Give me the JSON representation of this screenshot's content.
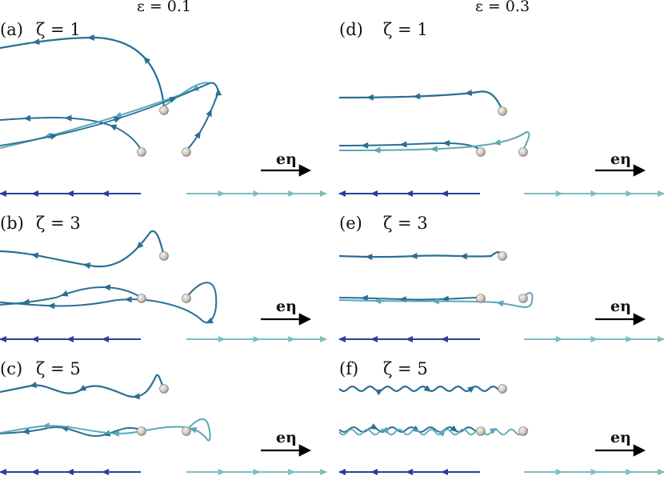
{
  "figure": {
    "column_headers": [
      "ε = 0.1",
      "ε = 0.3"
    ],
    "panels": [
      {
        "letter": "(a)",
        "zeta": "ζ = 1"
      },
      {
        "letter": "(b)",
        "zeta": "ζ = 3"
      },
      {
        "letter": "(c)",
        "zeta": "ζ = 5"
      },
      {
        "letter": "(d)",
        "zeta": "ζ = 1"
      },
      {
        "letter": "(e)",
        "zeta": "ζ = 3"
      },
      {
        "letter": "(f)",
        "zeta": "ζ = 5"
      }
    ],
    "direction_vector_label": "eη",
    "colors": {
      "trajectory": "#2a6f95",
      "trajectory_light": "#5aa8b8",
      "left_line": "#2b3f9a",
      "right_line": "#7bbfc0",
      "sphere": "#cfcac0",
      "arrow": "#000000"
    }
  }
}
